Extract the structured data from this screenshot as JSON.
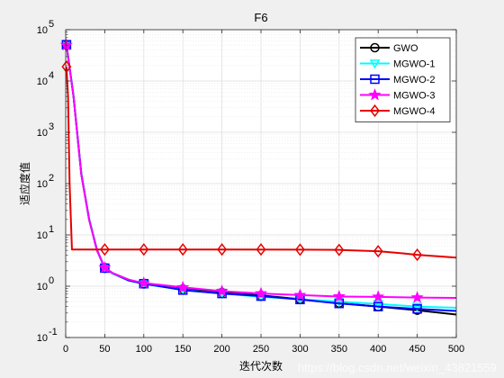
{
  "chart_data": {
    "type": "line",
    "title": "F6",
    "xlabel": "迭代次数",
    "ylabel": "适应度值",
    "xlim": [
      0,
      500
    ],
    "ylim": [
      0.1,
      100000
    ],
    "yscale": "log",
    "grid": true,
    "minor_grid": true,
    "legend_position": "top-right",
    "xticks": [
      0,
      50,
      100,
      150,
      200,
      250,
      300,
      350,
      400,
      450,
      500
    ],
    "yticks": [
      {
        "value": 0.1,
        "base": "10",
        "exp": "-1"
      },
      {
        "value": 1,
        "base": "10",
        "exp": "0"
      },
      {
        "value": 10,
        "base": "10",
        "exp": "1"
      },
      {
        "value": 100,
        "base": "10",
        "exp": "2"
      },
      {
        "value": 1000,
        "base": "10",
        "exp": "3"
      },
      {
        "value": 10000,
        "base": "10",
        "exp": "4"
      },
      {
        "value": 100000,
        "base": "10",
        "exp": "5"
      }
    ],
    "series": [
      {
        "name": "GWO",
        "color": "#000000",
        "marker": "circle",
        "x": [
          1,
          10,
          20,
          30,
          40,
          50,
          60,
          80,
          100,
          150,
          200,
          250,
          300,
          350,
          400,
          450,
          500
        ],
        "y": [
          50000,
          5000,
          150,
          20,
          5,
          2.3,
          1.8,
          1.35,
          1.1,
          0.88,
          0.75,
          0.66,
          0.56,
          0.47,
          0.4,
          0.34,
          0.28
        ],
        "markers_x": [
          1,
          50,
          100,
          150,
          200,
          250,
          300,
          350,
          400,
          450
        ],
        "markers_y": [
          50000,
          2.3,
          1.1,
          0.88,
          0.75,
          0.66,
          0.56,
          0.47,
          0.4,
          0.34
        ]
      },
      {
        "name": "MGWO-1",
        "color": "#00ffff",
        "marker": "triangle-down",
        "x": [
          1,
          10,
          20,
          30,
          40,
          50,
          60,
          80,
          100,
          150,
          200,
          250,
          300,
          350,
          400,
          450,
          500
        ],
        "y": [
          52000,
          5200,
          160,
          21,
          5.2,
          2.2,
          1.75,
          1.3,
          1.1,
          0.85,
          0.72,
          0.62,
          0.56,
          0.5,
          0.45,
          0.4,
          0.38
        ],
        "markers_x": [
          1,
          50,
          100,
          150,
          200,
          250,
          300,
          350,
          400,
          450
        ],
        "markers_y": [
          52000,
          2.2,
          1.1,
          0.85,
          0.72,
          0.62,
          0.56,
          0.5,
          0.45,
          0.4
        ]
      },
      {
        "name": "MGWO-2",
        "color": "#0000ff",
        "marker": "square",
        "x": [
          1,
          10,
          20,
          30,
          40,
          50,
          60,
          80,
          100,
          150,
          200,
          250,
          300,
          350,
          400,
          450,
          500
        ],
        "y": [
          51000,
          5100,
          155,
          20,
          5.1,
          2.25,
          1.8,
          1.3,
          1.12,
          0.84,
          0.72,
          0.64,
          0.55,
          0.46,
          0.4,
          0.36,
          0.33
        ],
        "markers_x": [
          1,
          50,
          100,
          150,
          200,
          250,
          300,
          350,
          400,
          450
        ],
        "markers_y": [
          51000,
          2.25,
          1.12,
          0.84,
          0.72,
          0.64,
          0.55,
          0.46,
          0.4,
          0.36
        ]
      },
      {
        "name": "MGWO-3",
        "color": "#ff00ff",
        "marker": "star",
        "x": [
          1,
          10,
          20,
          30,
          40,
          50,
          60,
          80,
          100,
          150,
          200,
          250,
          300,
          350,
          400,
          450,
          500
        ],
        "y": [
          50000,
          5000,
          150,
          20,
          5,
          2.3,
          1.8,
          1.35,
          1.15,
          0.95,
          0.8,
          0.72,
          0.67,
          0.63,
          0.62,
          0.6,
          0.59
        ],
        "markers_x": [
          1,
          50,
          100,
          150,
          200,
          250,
          300,
          350,
          400,
          450
        ],
        "markers_y": [
          50000,
          2.3,
          1.15,
          0.95,
          0.8,
          0.72,
          0.67,
          0.63,
          0.62,
          0.6
        ]
      },
      {
        "name": "MGWO-4",
        "color": "#e60000",
        "marker": "diamond",
        "x": [
          1,
          3,
          5,
          8,
          50,
          100,
          200,
          300,
          350,
          400,
          430,
          450,
          480,
          500
        ],
        "y": [
          19000,
          5000,
          100,
          5.2,
          5.2,
          5.2,
          5.2,
          5.15,
          5.1,
          4.8,
          4.4,
          4.1,
          3.8,
          3.6
        ],
        "markers_x": [
          1,
          50,
          100,
          150,
          200,
          250,
          300,
          350,
          400,
          450
        ],
        "markers_y": [
          19000,
          5.2,
          5.2,
          5.2,
          5.2,
          5.2,
          5.15,
          5.1,
          4.8,
          4.1
        ]
      }
    ]
  },
  "watermark": "https://blog.csdn.net/weixin_43821559"
}
